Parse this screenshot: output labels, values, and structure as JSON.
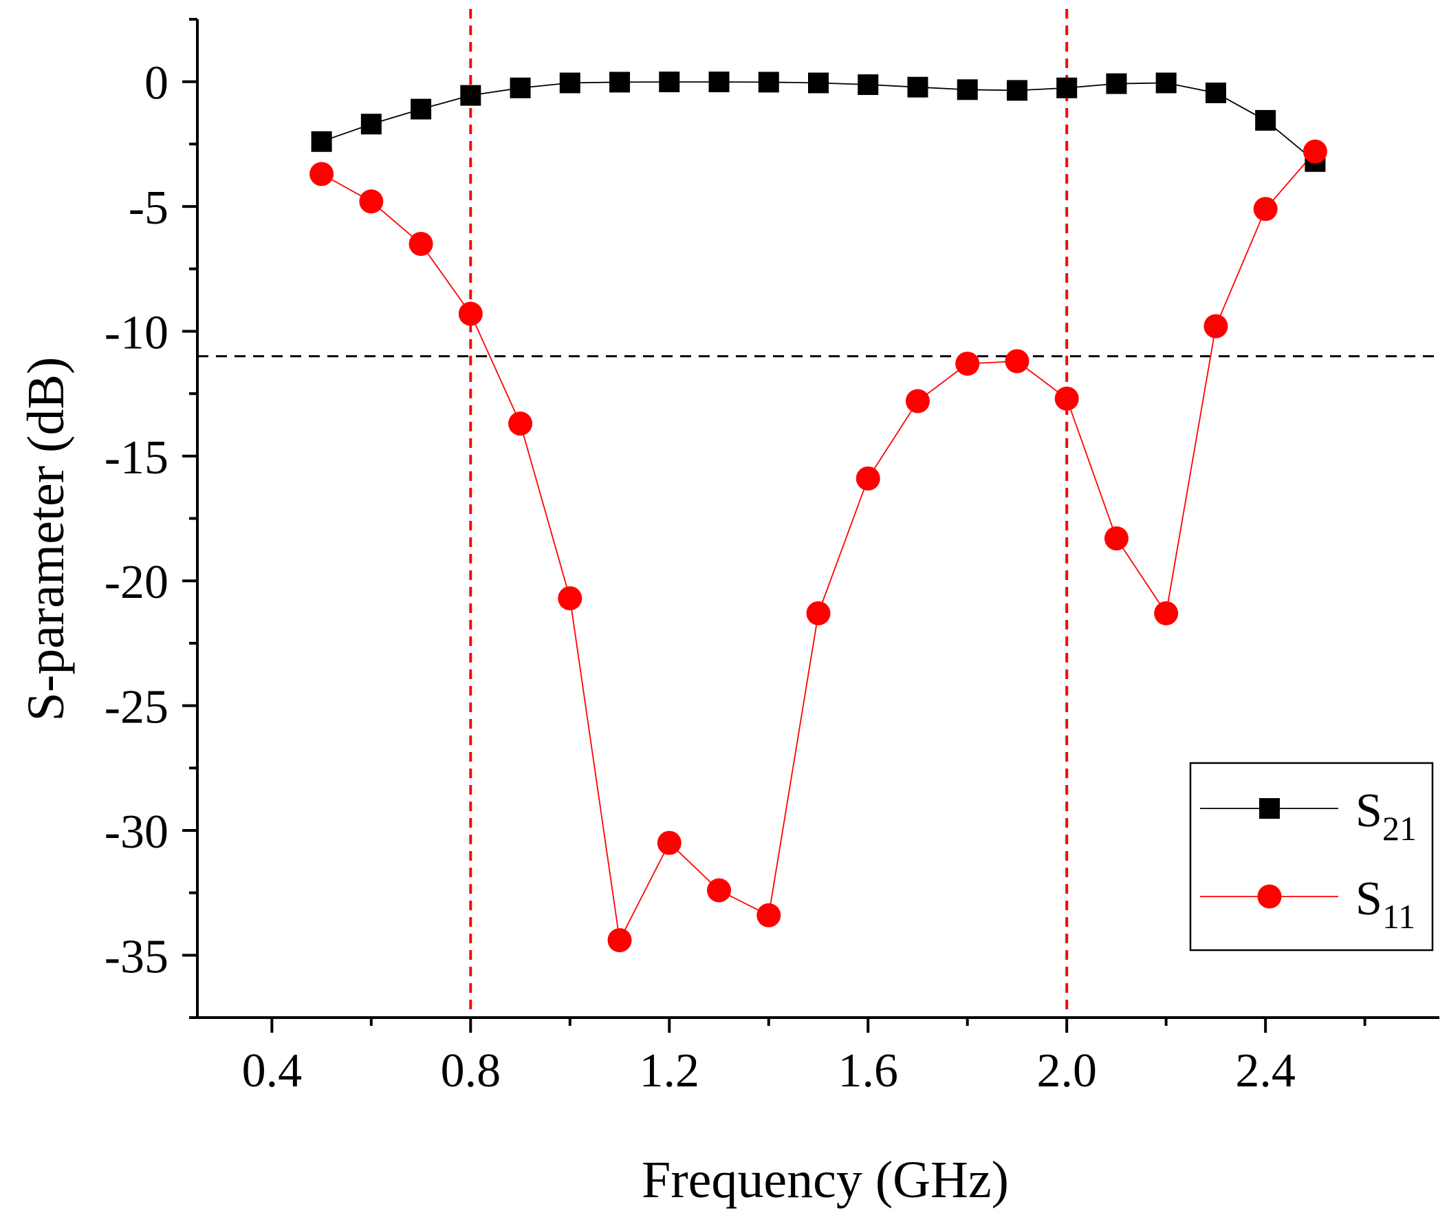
{
  "chart_data": {
    "type": "line",
    "title": "",
    "xlabel": "Frequency (GHz)",
    "ylabel": "S-parameter (dB)",
    "xlim": [
      0.25,
      2.75
    ],
    "ylim": [
      -37.5,
      2.5
    ],
    "x_ticks": [
      0.4,
      0.8,
      1.2,
      1.6,
      2.0,
      2.4
    ],
    "x_tick_labels": [
      "0.4",
      "0.8",
      "1.2",
      "1.6",
      "2.0",
      "2.4"
    ],
    "x_minor_ticks": [
      0.6,
      1.0,
      1.4,
      1.8,
      2.2,
      2.6
    ],
    "y_ticks": [
      0,
      -5,
      -10,
      -15,
      -20,
      -25,
      -30,
      -35
    ],
    "y_tick_labels": [
      "0",
      "-5",
      "-10",
      "-15",
      "-20",
      "-25",
      "-30",
      "-35"
    ],
    "y_minor_ticks": [
      2.5,
      -2.5,
      -7.5,
      -12.5,
      -17.5,
      -22.5,
      -27.5,
      -32.5,
      -37.5
    ],
    "grid": false,
    "legend_position": "bottom-right",
    "x": [
      0.5,
      0.6,
      0.7,
      0.8,
      0.9,
      1.0,
      1.1,
      1.2,
      1.3,
      1.4,
      1.5,
      1.6,
      1.7,
      1.8,
      1.9,
      2.0,
      2.1,
      2.2,
      2.3,
      2.4,
      2.5
    ],
    "series": [
      {
        "name": "S21",
        "legend_main": "S",
        "legend_sub": "21",
        "color": "#000000",
        "marker": "square",
        "values": [
          -2.4,
          -1.7,
          -1.1,
          -0.55,
          -0.25,
          -0.05,
          -0.02,
          -0.01,
          -0.01,
          -0.02,
          -0.05,
          -0.12,
          -0.22,
          -0.32,
          -0.35,
          -0.25,
          -0.08,
          -0.05,
          -0.45,
          -1.55,
          -3.2
        ]
      },
      {
        "name": "S11",
        "legend_main": "S",
        "legend_sub": "11",
        "color": "#ff0000",
        "marker": "circle",
        "values": [
          -3.7,
          -4.8,
          -6.5,
          -9.3,
          -13.7,
          -20.7,
          -34.4,
          -30.5,
          -32.4,
          -33.4,
          -21.3,
          -15.9,
          -12.8,
          -11.3,
          -11.2,
          -12.7,
          -18.3,
          -21.3,
          -9.8,
          -5.1,
          -2.8
        ]
      }
    ],
    "annotations": [
      {
        "type": "vline",
        "x": 0.8,
        "color": "#ff0000",
        "style": "dashed"
      },
      {
        "type": "vline",
        "x": 2.0,
        "color": "#ff0000",
        "style": "dashed"
      },
      {
        "type": "hline",
        "y": -11,
        "color": "#000000",
        "style": "dashed"
      }
    ]
  }
}
